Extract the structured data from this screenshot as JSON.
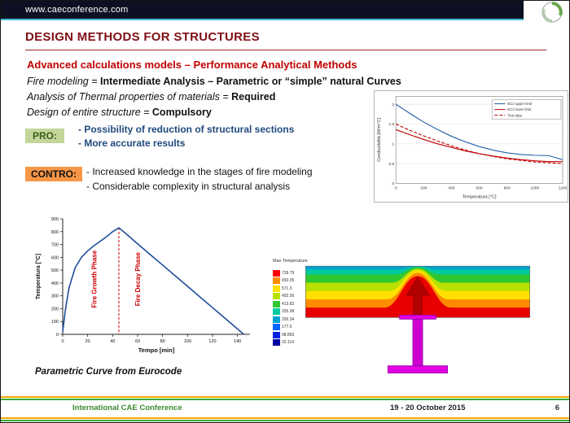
{
  "colors": {
    "topbar_bg": "#0c1022",
    "topbar_accent": "#49b8d6",
    "title": "#7f1016",
    "subtitle": "#c00000",
    "pro_bg": "#c4d79b",
    "contro_bg": "#f79646",
    "blue_text": "#1f497d",
    "footer_green": "#3a8a2e",
    "stripe_orange": "#f5a800",
    "stripe_green": "#3aaa35"
  },
  "header": {
    "url": "www.caeconference.com"
  },
  "title": "DESIGN METHODS FOR STRUCTURES",
  "subtitle": "Advanced calculations models – Performance Analytical Methods",
  "statements": [
    {
      "label": "Fire modeling = ",
      "value": "Intermediate Analysis – Parametric or “simple” natural Curves"
    },
    {
      "label": "Analysis of Thermal properties of materials = ",
      "value": "Required"
    },
    {
      "label": "Design of entire structure = ",
      "value": "Compulsory"
    }
  ],
  "pro": {
    "label": "PRO:",
    "items": [
      "- Possibility of reduction of structural sections",
      "- More accurate results"
    ]
  },
  "contro": {
    "label": "CONTRO:",
    "items": [
      "- Increased knowledge in the stages of fire modeling",
      "- Considerable complexity in structural analysis"
    ]
  },
  "chart_data": [
    {
      "type": "line",
      "name": "thermal-properties-chart",
      "title": "",
      "xlabel": "Temperatura [°C]",
      "ylabel": "Conducibilità [W/m°C]",
      "xlim": [
        0,
        1200
      ],
      "ylim": [
        0,
        2.2
      ],
      "xticks": [
        0,
        200,
        400,
        600,
        800,
        1000,
        1200
      ],
      "yticks": [
        0,
        0.5,
        1,
        1.5,
        2
      ],
      "grid": true,
      "legend_position": "top-right",
      "x": [
        0,
        100,
        200,
        300,
        400,
        500,
        600,
        700,
        800,
        900,
        1000,
        1100,
        1200
      ],
      "series": [
        {
          "name": "EC2 upper limit",
          "color": "#1f5fa8",
          "dash": "",
          "values": [
            2.0,
            1.77,
            1.55,
            1.36,
            1.19,
            1.05,
            0.93,
            0.84,
            0.77,
            0.73,
            0.71,
            0.7,
            0.6
          ]
        },
        {
          "name": "EC2 lower limit",
          "color": "#c00000",
          "dash": "",
          "values": [
            1.36,
            1.23,
            1.11,
            1.0,
            0.91,
            0.82,
            0.75,
            0.69,
            0.64,
            0.6,
            0.57,
            0.55,
            0.55
          ]
        },
        {
          "name": "Test data",
          "color": "#c00000",
          "dash": "4,2",
          "values": [
            1.5,
            1.34,
            1.2,
            1.07,
            0.95,
            0.84,
            0.75,
            0.68,
            0.62,
            0.58,
            0.54,
            0.52,
            0.5
          ]
        }
      ]
    },
    {
      "type": "line",
      "name": "parametric-curve-chart",
      "title": "Parametric Curve from Eurocode",
      "xlabel": "Tempo [min]",
      "ylabel": "Temperatura [°C]",
      "xlim": [
        0,
        150
      ],
      "ylim": [
        0,
        900
      ],
      "xticks": [
        0,
        20,
        40,
        60,
        80,
        100,
        120,
        140
      ],
      "yticks": [
        0,
        100,
        200,
        300,
        400,
        500,
        600,
        700,
        800,
        900
      ],
      "growth_label": "Fire Growth Phase",
      "decay_label": "Fire Decay Phase",
      "peak_line_x": 45,
      "series": [
        {
          "name": "Parametric fire curve",
          "color": "#1f4e9c",
          "dash": "",
          "x": [
            0,
            2,
            5,
            10,
            15,
            20,
            25,
            30,
            35,
            40,
            45,
            50,
            60,
            70,
            80,
            90,
            100,
            110,
            120,
            130,
            140,
            145
          ],
          "y": [
            20,
            180,
            360,
            520,
            600,
            650,
            690,
            725,
            760,
            800,
            830,
            790,
            705,
            622,
            540,
            457,
            374,
            291,
            208,
            125,
            42,
            0
          ]
        }
      ]
    }
  ],
  "fem": {
    "title": "Max Temperature",
    "legend_values": [
      "728.79",
      "650.05",
      "571.3",
      "492.56",
      "413.82",
      "335.08",
      "256.34",
      "177.6",
      "98.855",
      "20.114"
    ],
    "legend_colors": [
      "#ff0000",
      "#ff8c00",
      "#ffe000",
      "#b8e000",
      "#30c830",
      "#00c8a0",
      "#00a0d0",
      "#0064ff",
      "#0020e0",
      "#0000a0"
    ]
  },
  "footer": {
    "conference": "International CAE Conference",
    "date": "19 - 20 October 2015",
    "page": "6"
  }
}
